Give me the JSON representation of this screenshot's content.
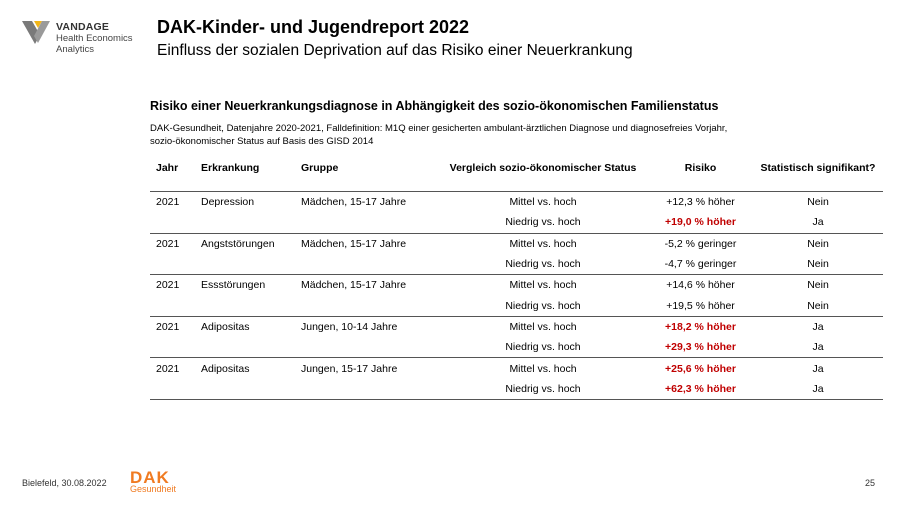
{
  "logo": {
    "brand": "VANDAGE",
    "line2": "Health Economics",
    "line3": "Analytics",
    "icon": "vandage-logo-icon"
  },
  "header": {
    "title": "DAK-Kinder- und Jugendreport 2022",
    "subtitle": "Einfluss der sozialen Deprivation auf das Risiko einer Neuerkrankung"
  },
  "section": {
    "title": "Risiko einer Neuerkrankungsdiagnose in Abhängigkeit des sozio-ökonomischen Familienstatus",
    "desc_line1": "DAK-Gesundheit, Datenjahre 2020-2021, Falldefinition: M1Q einer gesicherten ambulant-ärztlichen Diagnose und diagnosefreies Vorjahr,",
    "desc_line2": "sozio-ökonomischer Status auf Basis des GISD 2014"
  },
  "table": {
    "headers": [
      "Jahr",
      "Erkrankung",
      "Gruppe",
      "Vergleich sozio-ökonomischer Status",
      "Risiko",
      "Statistisch signifikant?"
    ],
    "rows": [
      {
        "jahr": "2021",
        "erkrankung": "Depression",
        "gruppe": "Mädchen, 15-17 Jahre",
        "vergleich": "Mittel vs. hoch",
        "risiko": "+12,3 % höher",
        "signifikant": "Nein",
        "hl": false
      },
      {
        "jahr": "",
        "erkrankung": "",
        "gruppe": "",
        "vergleich": "Niedrig vs. hoch",
        "risiko": "+19,0 % höher",
        "signifikant": "Ja",
        "hl": true
      },
      {
        "jahr": "2021",
        "erkrankung": "Angststörungen",
        "gruppe": "Mädchen, 15-17 Jahre",
        "vergleich": "Mittel vs. hoch",
        "risiko": "-5,2 % geringer",
        "signifikant": "Nein",
        "hl": false
      },
      {
        "jahr": "",
        "erkrankung": "",
        "gruppe": "",
        "vergleich": "Niedrig vs. hoch",
        "risiko": "-4,7 % geringer",
        "signifikant": "Nein",
        "hl": false
      },
      {
        "jahr": "2021",
        "erkrankung": "Essstörungen",
        "gruppe": "Mädchen, 15-17 Jahre",
        "vergleich": "Mittel vs. hoch",
        "risiko": "+14,6 % höher",
        "signifikant": "Nein",
        "hl": false
      },
      {
        "jahr": "",
        "erkrankung": "",
        "gruppe": "",
        "vergleich": "Niedrig vs. hoch",
        "risiko": "+19,5 % höher",
        "signifikant": "Nein",
        "hl": false
      },
      {
        "jahr": "2021",
        "erkrankung": "Adipositas",
        "gruppe": "Jungen, 10-14 Jahre",
        "vergleich": "Mittel vs. hoch",
        "risiko": "+18,2 % höher",
        "signifikant": "Ja",
        "hl": true
      },
      {
        "jahr": "",
        "erkrankung": "",
        "gruppe": "",
        "vergleich": "Niedrig vs. hoch",
        "risiko": "+29,3 % höher",
        "signifikant": "Ja",
        "hl": true
      },
      {
        "jahr": "2021",
        "erkrankung": "Adipositas",
        "gruppe": "Jungen, 15-17 Jahre",
        "vergleich": "Mittel vs. hoch",
        "risiko": "+25,6 % höher",
        "signifikant": "Ja",
        "hl": true
      },
      {
        "jahr": "",
        "erkrankung": "",
        "gruppe": "",
        "vergleich": "Niedrig vs. hoch",
        "risiko": "+62,3 % höher",
        "signifikant": "Ja",
        "hl": true
      }
    ]
  },
  "footer": {
    "date": "Bielefeld, 30.08.2022",
    "dak_word": "DAK",
    "dak_sub": "Gesundheit",
    "page": "25"
  },
  "colors": {
    "significant": "#c00000",
    "dak_orange": "#f07b22",
    "vandage_gold": "#f2b619",
    "vandage_gray": "#7a7a7a"
  }
}
